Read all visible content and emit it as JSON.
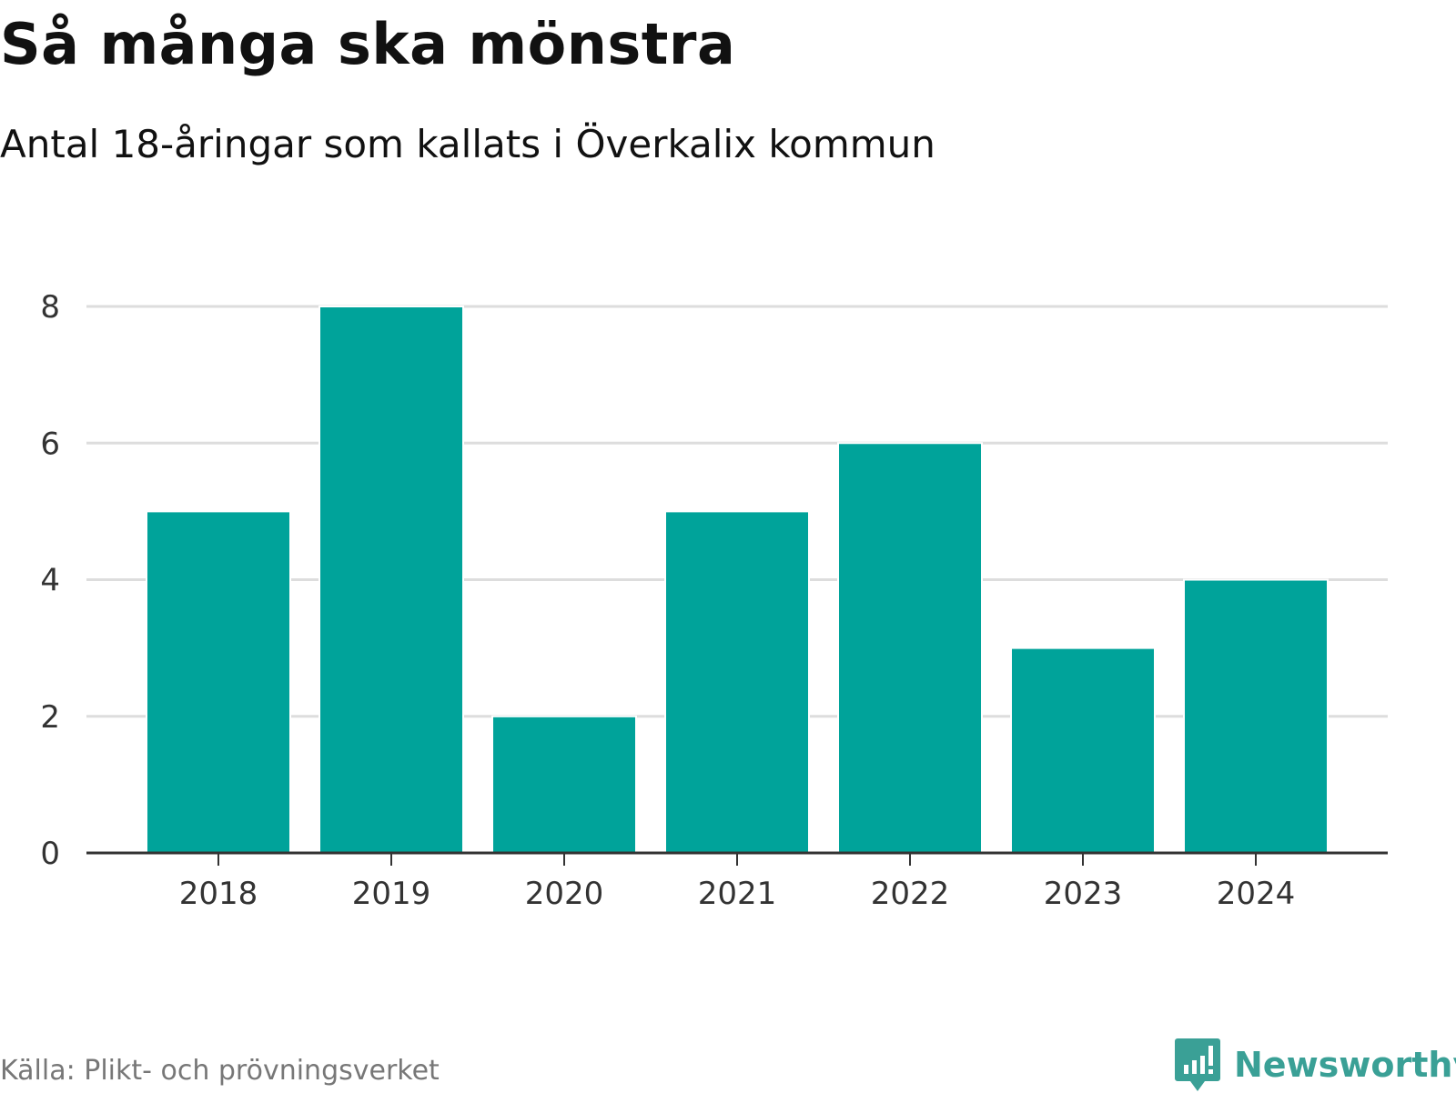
{
  "header": {
    "title": "Så många ska mönstra",
    "subtitle": "Antal 18-åringar som kallats i Överkalix kommun"
  },
  "footer": {
    "source": "Källa: Plikt- och prövningsverket",
    "brand": "Newsworthy"
  },
  "colors": {
    "bar": "#00a39a",
    "grid": "#dddddd",
    "axis": "#333333",
    "brand": "#3aa096"
  },
  "chart_data": {
    "type": "bar",
    "title": "Så många ska mönstra",
    "subtitle": "Antal 18-åringar som kallats i Överkalix kommun",
    "categories": [
      "2018",
      "2019",
      "2020",
      "2021",
      "2022",
      "2023",
      "2024"
    ],
    "values": [
      5,
      8,
      2,
      5,
      6,
      3,
      4
    ],
    "yticks": [
      0,
      2,
      4,
      6,
      8
    ],
    "ylim": [
      0,
      8
    ],
    "xlabel": "",
    "ylabel": "",
    "grid": true,
    "legend": "none"
  }
}
